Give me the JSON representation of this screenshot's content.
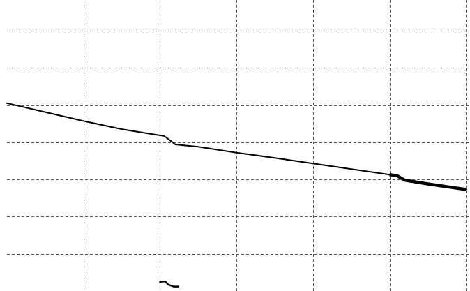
{
  "chart_data": {
    "type": "line",
    "title": "",
    "xlabel": "",
    "ylabel": "",
    "xlim": [
      0,
      6
    ],
    "ylim": [
      0,
      7.5
    ],
    "grid": true,
    "grid_style": "dashed",
    "grid_color": "#555555",
    "line_color": "#000000",
    "x_gridlines": [
      1,
      2,
      3,
      4,
      5,
      6
    ],
    "y_gridlines": [
      1,
      2,
      3,
      4,
      5,
      6,
      7
    ],
    "series": [
      {
        "x": [
          0,
          0.5,
          1.0,
          1.5,
          1.95,
          2.05,
          2.1,
          2.15,
          2.2,
          2.3,
          2.5,
          3.0,
          3.5,
          4.0,
          4.5,
          4.8,
          5.0,
          5.1,
          5.2,
          5.5,
          6.0
        ],
        "y": [
          5.05,
          4.81,
          4.57,
          4.35,
          4.2,
          4.17,
          4.1,
          4.02,
          3.94,
          3.92,
          3.88,
          3.72,
          3.58,
          3.43,
          3.28,
          3.19,
          3.13,
          3.1,
          2.98,
          2.88,
          2.73
        ]
      },
      {
        "x": [
          2.0,
          2.07,
          2.11,
          2.18,
          2.24
        ],
        "y": [
          0.25,
          0.26,
          0.17,
          0.12,
          0.12
        ]
      }
    ]
  }
}
